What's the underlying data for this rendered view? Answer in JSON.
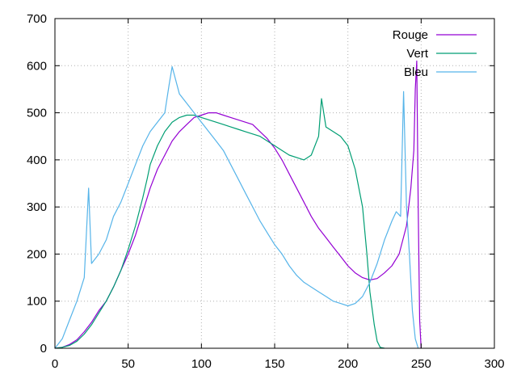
{
  "chart_data": {
    "type": "line",
    "xlim": [
      0,
      300
    ],
    "ylim": [
      0,
      700
    ],
    "xticks": [
      0,
      50,
      100,
      150,
      200,
      250,
      300
    ],
    "yticks": [
      0,
      100,
      200,
      300,
      400,
      500,
      600,
      700
    ],
    "grid": true,
    "legend_position": "top-right",
    "series": [
      {
        "name": "Rouge",
        "color": "#9400d3",
        "points": [
          [
            0,
            0
          ],
          [
            5,
            2
          ],
          [
            10,
            8
          ],
          [
            15,
            18
          ],
          [
            20,
            35
          ],
          [
            25,
            55
          ],
          [
            30,
            80
          ],
          [
            35,
            100
          ],
          [
            40,
            130
          ],
          [
            45,
            165
          ],
          [
            50,
            200
          ],
          [
            55,
            240
          ],
          [
            60,
            290
          ],
          [
            65,
            340
          ],
          [
            70,
            380
          ],
          [
            75,
            410
          ],
          [
            80,
            440
          ],
          [
            85,
            460
          ],
          [
            90,
            475
          ],
          [
            95,
            490
          ],
          [
            100,
            495
          ],
          [
            105,
            500
          ],
          [
            110,
            500
          ],
          [
            115,
            495
          ],
          [
            120,
            490
          ],
          [
            125,
            485
          ],
          [
            130,
            480
          ],
          [
            135,
            475
          ],
          [
            140,
            460
          ],
          [
            145,
            445
          ],
          [
            150,
            425
          ],
          [
            155,
            400
          ],
          [
            160,
            370
          ],
          [
            165,
            340
          ],
          [
            170,
            310
          ],
          [
            175,
            280
          ],
          [
            180,
            255
          ],
          [
            185,
            235
          ],
          [
            190,
            215
          ],
          [
            195,
            195
          ],
          [
            200,
            175
          ],
          [
            205,
            160
          ],
          [
            210,
            150
          ],
          [
            215,
            145
          ],
          [
            220,
            148
          ],
          [
            225,
            160
          ],
          [
            230,
            175
          ],
          [
            235,
            200
          ],
          [
            240,
            260
          ],
          [
            243,
            340
          ],
          [
            245,
            420
          ],
          [
            246,
            550
          ],
          [
            247,
            610
          ],
          [
            248,
            300
          ],
          [
            249,
            60
          ],
          [
            250,
            0
          ]
        ]
      },
      {
        "name": "Vert",
        "color": "#009e73",
        "points": [
          [
            0,
            0
          ],
          [
            5,
            2
          ],
          [
            10,
            6
          ],
          [
            15,
            15
          ],
          [
            20,
            30
          ],
          [
            25,
            50
          ],
          [
            30,
            75
          ],
          [
            35,
            100
          ],
          [
            40,
            130
          ],
          [
            45,
            165
          ],
          [
            50,
            210
          ],
          [
            55,
            260
          ],
          [
            60,
            320
          ],
          [
            63,
            360
          ],
          [
            65,
            390
          ],
          [
            70,
            430
          ],
          [
            75,
            460
          ],
          [
            80,
            480
          ],
          [
            85,
            490
          ],
          [
            90,
            495
          ],
          [
            95,
            495
          ],
          [
            100,
            490
          ],
          [
            105,
            485
          ],
          [
            110,
            480
          ],
          [
            115,
            475
          ],
          [
            120,
            470
          ],
          [
            125,
            465
          ],
          [
            130,
            460
          ],
          [
            135,
            455
          ],
          [
            140,
            450
          ],
          [
            145,
            440
          ],
          [
            150,
            430
          ],
          [
            155,
            420
          ],
          [
            160,
            410
          ],
          [
            165,
            405
          ],
          [
            170,
            400
          ],
          [
            175,
            410
          ],
          [
            180,
            450
          ],
          [
            182,
            530
          ],
          [
            185,
            470
          ],
          [
            190,
            460
          ],
          [
            195,
            450
          ],
          [
            200,
            430
          ],
          [
            205,
            380
          ],
          [
            210,
            300
          ],
          [
            213,
            200
          ],
          [
            215,
            120
          ],
          [
            218,
            50
          ],
          [
            220,
            15
          ],
          [
            222,
            2
          ],
          [
            225,
            0
          ]
        ]
      },
      {
        "name": "Bleu",
        "color": "#56b4e9",
        "points": [
          [
            0,
            0
          ],
          [
            5,
            20
          ],
          [
            10,
            60
          ],
          [
            15,
            100
          ],
          [
            20,
            150
          ],
          [
            23,
            340
          ],
          [
            25,
            180
          ],
          [
            30,
            200
          ],
          [
            35,
            230
          ],
          [
            40,
            280
          ],
          [
            45,
            310
          ],
          [
            50,
            350
          ],
          [
            55,
            390
          ],
          [
            60,
            430
          ],
          [
            65,
            460
          ],
          [
            70,
            480
          ],
          [
            75,
            500
          ],
          [
            78,
            560
          ],
          [
            80,
            598
          ],
          [
            85,
            540
          ],
          [
            90,
            520
          ],
          [
            95,
            500
          ],
          [
            100,
            480
          ],
          [
            105,
            460
          ],
          [
            110,
            440
          ],
          [
            115,
            420
          ],
          [
            120,
            390
          ],
          [
            125,
            360
          ],
          [
            130,
            330
          ],
          [
            135,
            300
          ],
          [
            140,
            270
          ],
          [
            145,
            245
          ],
          [
            150,
            220
          ],
          [
            155,
            200
          ],
          [
            160,
            175
          ],
          [
            165,
            155
          ],
          [
            170,
            140
          ],
          [
            175,
            130
          ],
          [
            180,
            120
          ],
          [
            185,
            110
          ],
          [
            190,
            100
          ],
          [
            195,
            95
          ],
          [
            200,
            90
          ],
          [
            205,
            95
          ],
          [
            210,
            110
          ],
          [
            215,
            140
          ],
          [
            220,
            180
          ],
          [
            225,
            230
          ],
          [
            230,
            270
          ],
          [
            233,
            290
          ],
          [
            236,
            280
          ],
          [
            238,
            545
          ],
          [
            240,
            300
          ],
          [
            242,
            200
          ],
          [
            244,
            80
          ],
          [
            246,
            20
          ],
          [
            248,
            0
          ]
        ]
      }
    ]
  }
}
